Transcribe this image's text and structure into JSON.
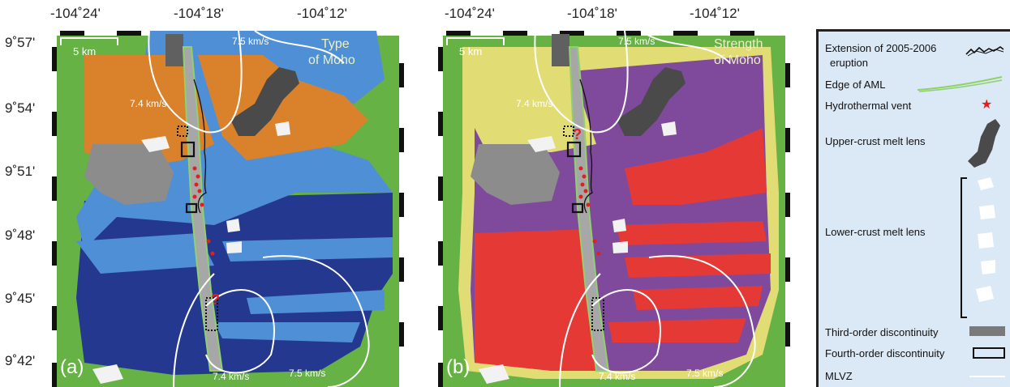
{
  "top_axis": {
    "ticks_a": [
      "-104˚24'",
      "-104˚18'",
      "-104˚12'"
    ],
    "ticks_b": [
      "-104˚24'",
      "-104˚18'",
      "-104˚12'"
    ]
  },
  "left_axis": {
    "ticks": [
      "9˚57'",
      "9˚54'",
      "9˚51'",
      "9˚48'",
      "9˚45'",
      "9˚42'"
    ]
  },
  "panel_a": {
    "label": "(a)",
    "title_line1": "Type",
    "title_line2": "of Moho",
    "scale_label": "5 km",
    "contours": [
      "7.5 km/s",
      "7.4 km/s",
      "7.4 km/s",
      "7.5 km/s"
    ],
    "question_mark": "?"
  },
  "panel_b": {
    "label": "(b)",
    "title_line1": "Strength",
    "title_line2": "of Moho",
    "scale_label": "5 km",
    "contours": [
      "7.5 km/s",
      "7.4 km/s",
      "7.4 km/s",
      "7.5 km/s"
    ],
    "question_mark": "?"
  },
  "legend": {
    "eruption_line1": "Extension of 2005-2006",
    "eruption_line2": "eruption",
    "aml": "Edge of  AML",
    "vent": "Hydrothermal vent",
    "upper_lens": "Upper-crust melt lens",
    "lower_lens": "Lower-crust melt lens",
    "third_order": "Third-order discontinuity",
    "fourth_order": "Fourth-order discontinuity",
    "mlvz": "MLVZ"
  },
  "colors": {
    "background_green": "#66b245",
    "moho_orange": "#d9822b",
    "moho_lightblue": "#4f8fd6",
    "moho_darkblue": "#25388f",
    "gray_zone": "#8c8c8c",
    "strength_red": "#e53935",
    "strength_purple": "#7f4a9c",
    "strength_yellow": "#e2dc74",
    "melt_lens_dark": "#4a4a4a",
    "contour_white": "#ffffff",
    "aml_green": "#8fd16b",
    "vent_red": "#e0201f",
    "legend_bg": "#dbe9f6"
  }
}
